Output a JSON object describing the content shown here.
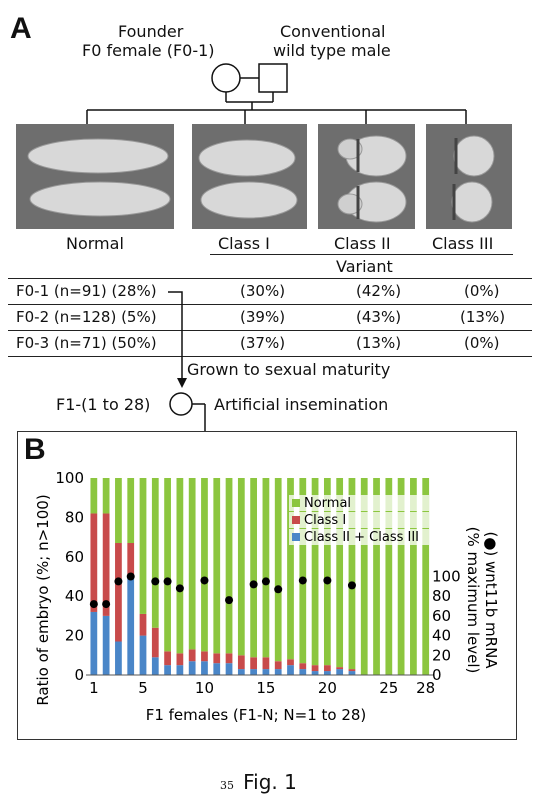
{
  "panel_a": {
    "letter": "A",
    "founder_label_1": "Founder",
    "founder_label_2": "F0 female (F0-1)",
    "male_label_1": "Conventional",
    "male_label_2": "wild type male",
    "phenotypes": [
      "Normal",
      "Class I",
      "Class II",
      "Class III"
    ],
    "variant_label": "Variant",
    "table": [
      {
        "line": "F0-1 (n=91) (28%)",
        "class1": "(30%)",
        "class2": "(42%)",
        "class3": "(0%)"
      },
      {
        "line": "F0-2 (n=128) (5%)",
        "class1": "(39%)",
        "class2": "(43%)",
        "class3": "(13%)"
      },
      {
        "line": "F0-3 (n=71) (50%)",
        "class1": "(37%)",
        "class2": "(13%)",
        "class3": "(0%)"
      }
    ],
    "grown_label": "Grown to sexual maturity",
    "f1_label": "F1-(1 to 28)",
    "insemination_label": "Artificial insemination"
  },
  "panel_b": {
    "letter": "B",
    "figure_label": "Fig. 1",
    "page_number": "35"
  },
  "chart_data": {
    "type": "bar",
    "stacked": true,
    "categories": [
      1,
      2,
      3,
      4,
      5,
      6,
      7,
      8,
      9,
      10,
      11,
      12,
      13,
      14,
      15,
      16,
      17,
      18,
      19,
      20,
      21,
      22,
      23,
      24,
      25,
      26,
      27,
      28
    ],
    "series": [
      {
        "name": "Class II + Class III",
        "color": "#4a86c8",
        "values": [
          32,
          30,
          17,
          50,
          20,
          9,
          5,
          5,
          7,
          7,
          6,
          6,
          3,
          3,
          3,
          3,
          5,
          3,
          2,
          2,
          3,
          2,
          0,
          0,
          0,
          0,
          0,
          0
        ]
      },
      {
        "name": "Class I",
        "color": "#c84b4b",
        "values": [
          50,
          52,
          50,
          17,
          11,
          15,
          7,
          6,
          6,
          5,
          5,
          5,
          7,
          6,
          6,
          4,
          3,
          3,
          3,
          3,
          1,
          1,
          0,
          0,
          0,
          0,
          0,
          0
        ]
      },
      {
        "name": "Normal",
        "color": "#8cc63f",
        "values": [
          18,
          18,
          33,
          33,
          69,
          76,
          88,
          89,
          87,
          88,
          89,
          89,
          90,
          91,
          91,
          93,
          92,
          94,
          95,
          95,
          96,
          97,
          100,
          100,
          100,
          100,
          100,
          100
        ]
      }
    ],
    "wnt11b": {
      "name": "wnt11b mRNA",
      "points": [
        [
          1,
          72
        ],
        [
          2,
          72
        ],
        [
          3,
          95
        ],
        [
          4,
          100
        ],
        [
          6,
          95
        ],
        [
          7,
          95
        ],
        [
          8,
          88
        ],
        [
          10,
          96
        ],
        [
          12,
          76
        ],
        [
          14,
          92
        ],
        [
          15,
          95
        ],
        [
          16,
          87
        ],
        [
          18,
          96
        ],
        [
          20,
          96
        ],
        [
          22,
          91
        ]
      ]
    },
    "xlabel": "F1 females (F1-N; N=1 to 28)",
    "ylabel": "Ratio of embryo (%; n>100)",
    "y2label_1": "(●) wnt11b mRNA",
    "y2label_2": "(% maximum level)",
    "ylim": [
      0,
      100
    ],
    "y_ticks": [
      "0",
      "20",
      "40",
      "60",
      "80",
      "100"
    ],
    "y2_ticks": [
      "0",
      "20",
      "40",
      "60",
      "80",
      "100"
    ],
    "x_ticks": [
      "1",
      "5",
      "10",
      "15",
      "20",
      "25",
      "28"
    ],
    "legend": [
      "Normal",
      "Class I",
      "Class II + Class III"
    ],
    "legend_position": "top-right",
    "grid": false
  }
}
